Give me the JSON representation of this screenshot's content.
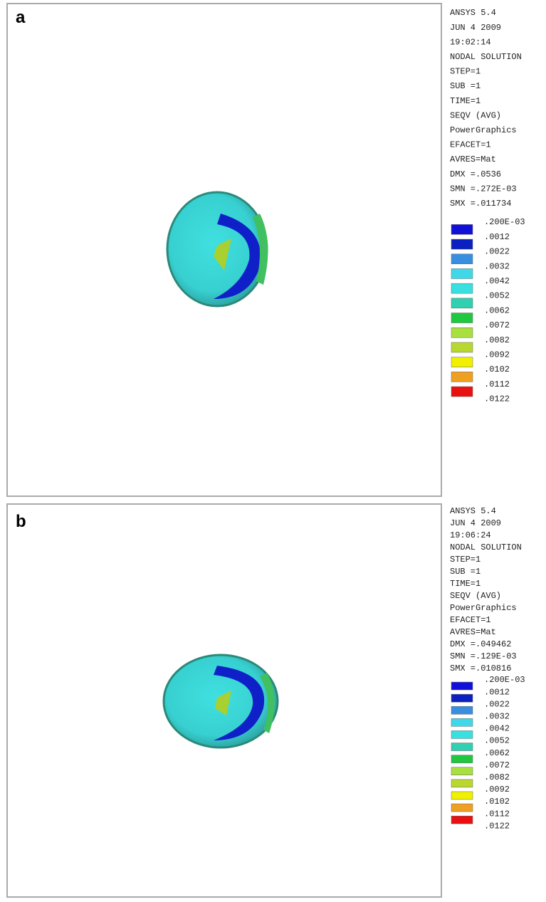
{
  "panels": [
    {
      "label": "a",
      "info": [
        "ANSYS 5.4",
        "JUN  4 2009",
        "19:02:14",
        "NODAL SOLUTION",
        "STEP=1",
        "SUB =1",
        "TIME=1",
        "SEQV     (AVG)",
        "PowerGraphics",
        "EFACET=1",
        "AVRES=Mat",
        "DMX =.0536",
        "SMN =.272E-03",
        "SMX =.011734"
      ],
      "legend_labels": [
        ".200E-03",
        ".0012",
        ".0022",
        ".0032",
        ".0042",
        ".0052",
        ".0062",
        ".0072",
        ".0082",
        ".0092",
        ".0102",
        ".0112",
        ".0122"
      ],
      "legend_colors": [
        "#1010d8",
        "#0a20c0",
        "#3a8ee0",
        "#40d8e8",
        "#38e0e0",
        "#30d0b0",
        "#20c840",
        "#a8e040",
        "#b8d830",
        "#f0f000",
        "#f0a020",
        "#e81010"
      ]
    },
    {
      "label": "b",
      "info": [
        "ANSYS 5.4",
        "JUN  4 2009",
        "19:06:24",
        "NODAL SOLUTION",
        "STEP=1",
        "SUB =1",
        "TIME=1",
        "SEQV     (AVG)",
        "PowerGraphics",
        "EFACET=1",
        "AVRES=Mat",
        "DMX =.049462",
        "SMN =.129E-03",
        "SMX =.010816"
      ],
      "legend_labels": [
        ".200E-03",
        ".0012",
        ".0022",
        ".0032",
        ".0042",
        ".0052",
        ".0062",
        ".0072",
        ".0082",
        ".0092",
        ".0102",
        ".0112",
        ".0122"
      ],
      "legend_colors": [
        "#1010d8",
        "#0a20c0",
        "#3a8ee0",
        "#40d8e8",
        "#38e0e0",
        "#30d0b0",
        "#20c840",
        "#a8e040",
        "#b8d830",
        "#f0f000",
        "#f0a020",
        "#e81010"
      ]
    }
  ]
}
